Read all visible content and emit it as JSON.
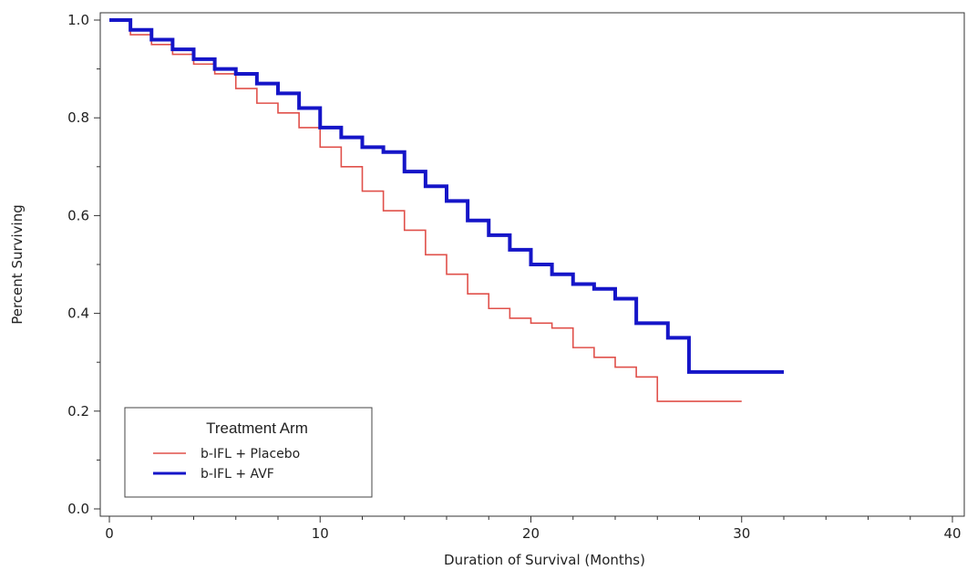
{
  "chart_data": {
    "type": "line",
    "step": true,
    "title": "",
    "xlabel": "Duration of Survival (Months)",
    "ylabel": "Percent Surviving",
    "xlim": [
      0,
      40
    ],
    "ylim": [
      0,
      1.0
    ],
    "x_ticks": [
      0,
      10,
      20,
      30,
      40
    ],
    "y_ticks": [
      0.0,
      0.2,
      0.4,
      0.6,
      0.8,
      1.0
    ],
    "x_tick_labels": [
      "0",
      "10",
      "20",
      "30",
      "40"
    ],
    "y_tick_labels": [
      "0.0",
      "0.2",
      "0.4",
      "0.6",
      "0.8",
      "1.0"
    ],
    "grid": false,
    "legend": {
      "title": "Treatment Arm",
      "position": "bottom-left",
      "entries": [
        "b-IFL + Placebo",
        "b-IFL + AVF"
      ]
    },
    "series": [
      {
        "name": "b-IFL + Placebo",
        "color": "#e0504a",
        "stroke": "thin",
        "points": [
          [
            0,
            1.0
          ],
          [
            1,
            0.97
          ],
          [
            2,
            0.95
          ],
          [
            3,
            0.93
          ],
          [
            4,
            0.91
          ],
          [
            5,
            0.89
          ],
          [
            6,
            0.86
          ],
          [
            7,
            0.83
          ],
          [
            8,
            0.81
          ],
          [
            9,
            0.78
          ],
          [
            10,
            0.74
          ],
          [
            11,
            0.7
          ],
          [
            12,
            0.65
          ],
          [
            13,
            0.61
          ],
          [
            14,
            0.57
          ],
          [
            15,
            0.52
          ],
          [
            16,
            0.48
          ],
          [
            17,
            0.44
          ],
          [
            18,
            0.41
          ],
          [
            19,
            0.39
          ],
          [
            20,
            0.38
          ],
          [
            21,
            0.37
          ],
          [
            22,
            0.33
          ],
          [
            23,
            0.31
          ],
          [
            24,
            0.29
          ],
          [
            25,
            0.27
          ],
          [
            26,
            0.22
          ],
          [
            30,
            0.22
          ]
        ]
      },
      {
        "name": "b-IFL + AVF",
        "color": "#1515c8",
        "stroke": "thick",
        "points": [
          [
            0,
            1.0
          ],
          [
            1,
            0.98
          ],
          [
            2,
            0.96
          ],
          [
            3,
            0.94
          ],
          [
            4,
            0.92
          ],
          [
            5,
            0.9
          ],
          [
            6,
            0.89
          ],
          [
            7,
            0.87
          ],
          [
            8,
            0.85
          ],
          [
            9,
            0.82
          ],
          [
            10,
            0.78
          ],
          [
            11,
            0.76
          ],
          [
            12,
            0.74
          ],
          [
            13,
            0.73
          ],
          [
            14,
            0.69
          ],
          [
            15,
            0.66
          ],
          [
            16,
            0.63
          ],
          [
            17,
            0.59
          ],
          [
            18,
            0.56
          ],
          [
            19,
            0.53
          ],
          [
            20,
            0.5
          ],
          [
            21,
            0.48
          ],
          [
            22,
            0.46
          ],
          [
            23,
            0.45
          ],
          [
            24,
            0.43
          ],
          [
            25,
            0.38
          ],
          [
            26,
            0.38
          ],
          [
            26.5,
            0.35
          ],
          [
            27.5,
            0.28
          ],
          [
            32,
            0.28
          ]
        ]
      }
    ]
  }
}
